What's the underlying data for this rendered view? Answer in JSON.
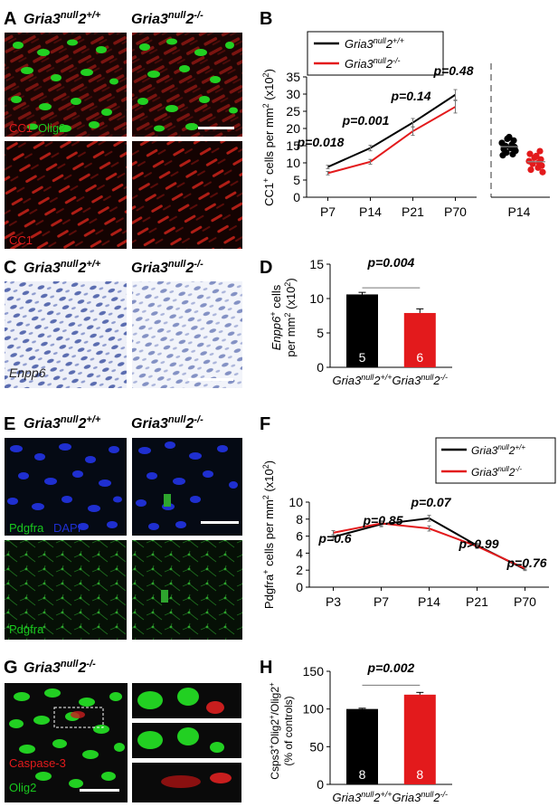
{
  "colors": {
    "black": "#000000",
    "red": "#e31a1c",
    "green": "#19c81e",
    "blue": "#1f2fd0",
    "grey": "#999999"
  },
  "genotypes": {
    "wt_base": "Gria3",
    "wt_sup": "null",
    "wt_tail": "2",
    "wt_geno": "+/+",
    "ko_base": "Gria3",
    "ko_sup": "null",
    "ko_tail": "2",
    "ko_geno": "-/-"
  },
  "panels": {
    "A": {
      "letter": "A",
      "top_labels": {
        "red": "CC1",
        "green": "Olig2"
      },
      "bottom_label": "CC1"
    },
    "C": {
      "letter": "C",
      "image_label": "Enpp6"
    },
    "E": {
      "letter": "E",
      "top_labels": {
        "green": "Pdgfra",
        "blue": "DAPI"
      },
      "bottom_label": "Pdgfra"
    },
    "G": {
      "letter": "G",
      "labels": {
        "red": "Caspase-3",
        "green": "Olig2"
      }
    }
  },
  "chart_data": [
    {
      "panel": "B",
      "type": "line",
      "categories": [
        "P7",
        "P14",
        "P21",
        "P70"
      ],
      "series": [
        {
          "name": "Gria3null2+/+",
          "values": [
            8.8,
            14.3,
            21.7,
            29.8
          ],
          "errors": [
            0.5,
            0.8,
            1.2,
            1.5
          ]
        },
        {
          "name": "Gria3null2-/-",
          "values": [
            7.0,
            10.3,
            19.2,
            26.3
          ],
          "errors": [
            0.5,
            0.7,
            1.2,
            1.8
          ]
        }
      ],
      "pvalues": [
        "p=0.018",
        "p=0.001",
        "p=0.14",
        "p=0.48"
      ],
      "ylabel_base": "CC1",
      "ylabel_sup": "+",
      "ylabel_rest": " cells per mm",
      "ylabel_sup2": "2",
      "ylabel_unit": " (x10",
      "ylabel_sup3": "2",
      "ylabel_close": ")",
      "ylim": [
        0,
        35
      ],
      "yticks": [
        "0",
        "5",
        "10",
        "15",
        "20",
        "25",
        "30",
        "35"
      ],
      "scatter_category": "P14",
      "scatter_wt": [
        12.2,
        12.5,
        13.0,
        13.5,
        14.0,
        14.3,
        14.6,
        14.9,
        15.3,
        15.8,
        16.5,
        17.0,
        17.5
      ],
      "scatter_ko": [
        7.3,
        8.0,
        8.6,
        9.2,
        9.7,
        10.1,
        10.5,
        11.0,
        11.5,
        12.0,
        12.6,
        13.4
      ],
      "legend_position": "top-left"
    },
    {
      "panel": "D",
      "type": "bar",
      "categories": [
        "Gria3null2+/+",
        "Gria3null2-/-"
      ],
      "values": [
        10.6,
        7.9
      ],
      "errors": [
        0.3,
        0.6
      ],
      "n_labels": [
        "5",
        "6"
      ],
      "pvalue": "p=0.004",
      "ylabel_line1_base": "Enpp6",
      "ylabel_line1_sup": "+",
      "ylabel_line1_rest": " cells",
      "ylabel_line2_base": "per mm",
      "ylabel_line2_sup": "2",
      "ylabel_line2_unit": " (x10",
      "ylabel_line2_sup2": "2",
      "ylabel_line2_close": ")",
      "ylim": [
        0,
        15
      ],
      "yticks": [
        "0",
        "5",
        "10",
        "15"
      ]
    },
    {
      "panel": "F",
      "type": "line",
      "categories": [
        "P3",
        "P7",
        "P14",
        "P21",
        "P70"
      ],
      "series": [
        {
          "name": "Gria3null2+/+",
          "values": [
            5.9,
            7.4,
            8.1,
            4.9,
            2.1
          ],
          "errors": [
            0.25,
            0.3,
            0.35,
            0.25,
            0.15
          ]
        },
        {
          "name": "Gria3null2-/-",
          "values": [
            6.4,
            7.5,
            6.9,
            4.8,
            2.2
          ],
          "errors": [
            0.25,
            0.3,
            0.3,
            0.25,
            0.15
          ]
        }
      ],
      "pvalues": [
        "p=0.6",
        "p=0.85",
        "p=0.07",
        "p>0.99",
        "p=0.76"
      ],
      "ylabel_base": "Pdgfra",
      "ylabel_sup": "+",
      "ylabel_rest": " cells per mm",
      "ylabel_sup2": "2",
      "ylabel_unit": " (x10",
      "ylabel_sup3": "2",
      "ylabel_close": ")",
      "ylim": [
        0,
        10
      ],
      "yticks": [
        "0",
        "2",
        "4",
        "6",
        "8",
        "10"
      ],
      "legend_position": "top-right"
    },
    {
      "panel": "H",
      "type": "bar",
      "categories": [
        "Gria3null2+/+",
        "Gria3null2-/-"
      ],
      "values": [
        100,
        119
      ],
      "errors": [
        1,
        3
      ],
      "n_labels": [
        "8",
        "8"
      ],
      "pvalue": "p=0.002",
      "ylabel_line1_base": "Csps3",
      "ylabel_line1_sup": "+",
      "ylabel_line1_mid": "Olig2",
      "ylabel_line1_sup2": "+",
      "ylabel_line1_slash": "/Olig2",
      "ylabel_line1_sup3": "+",
      "ylabel_line2": "(% of controls)",
      "ylim": [
        0,
        150
      ],
      "yticks": [
        "0",
        "50",
        "100",
        "150"
      ]
    }
  ],
  "panel_letters": {
    "B": "B",
    "D": "D",
    "F": "F",
    "H": "H"
  }
}
